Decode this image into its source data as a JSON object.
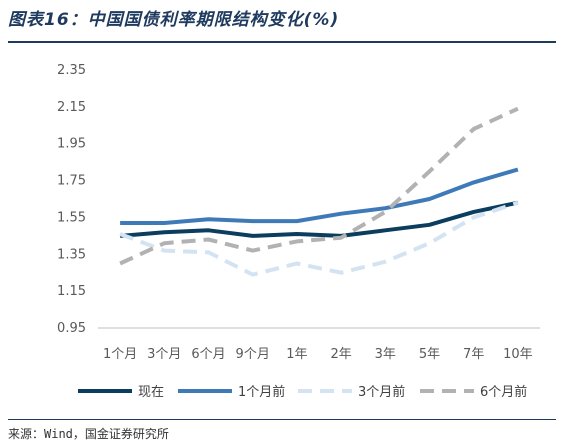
{
  "header": {
    "title": "图表16：中国国债利率期限结构变化(%)"
  },
  "footer": {
    "source": "来源：Wind，国金证券研究所"
  },
  "chart_data": {
    "type": "line",
    "categories": [
      "1个月",
      "3个月",
      "6个月",
      "9个月",
      "1年",
      "2年",
      "3年",
      "5年",
      "7年",
      "10年"
    ],
    "ylim": [
      0.95,
      2.35
    ],
    "yticks": [
      "0.95",
      "1.15",
      "1.35",
      "1.55",
      "1.75",
      "1.95",
      "2.15",
      "2.35"
    ],
    "grid": false,
    "legend_position": "bottom",
    "series": [
      {
        "name": "现在",
        "color": "#0b3d5e",
        "dash": "solid",
        "values": [
          1.45,
          1.47,
          1.48,
          1.45,
          1.46,
          1.45,
          1.48,
          1.51,
          1.58,
          1.63
        ]
      },
      {
        "name": "1个月前",
        "color": "#3f7ab8",
        "dash": "solid",
        "values": [
          1.52,
          1.52,
          1.54,
          1.53,
          1.53,
          1.57,
          1.6,
          1.65,
          1.74,
          1.81
        ]
      },
      {
        "name": "3个月前",
        "color": "#d4e3f1",
        "dash": "dashed",
        "values": [
          1.46,
          1.37,
          1.36,
          1.24,
          1.3,
          1.25,
          1.31,
          1.41,
          1.55,
          1.63
        ]
      },
      {
        "name": "6个月前",
        "color": "#b2b2b2",
        "dash": "dashed",
        "values": [
          1.3,
          1.41,
          1.43,
          1.37,
          1.42,
          1.44,
          1.58,
          1.8,
          2.03,
          2.14
        ]
      }
    ]
  }
}
